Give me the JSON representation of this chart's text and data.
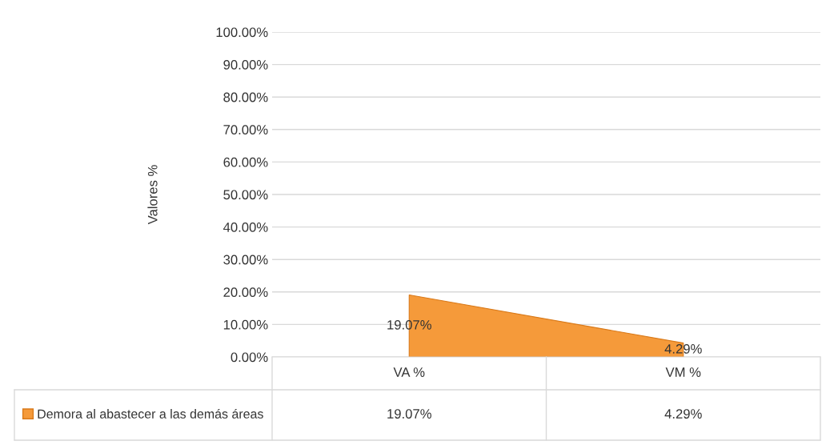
{
  "chart_data": {
    "type": "area",
    "ylabel": "Valores %",
    "categories": [
      "VA %",
      "VM %"
    ],
    "series": [
      {
        "name": "Demora al abastecer a las demás áreas",
        "color": "#f59a3a",
        "values": [
          19.07,
          4.29
        ],
        "value_labels": [
          "19.07%",
          "4.29%"
        ]
      }
    ],
    "ylim": [
      0,
      100
    ],
    "yticks": [
      {
        "value": 0,
        "label": "0.00%"
      },
      {
        "value": 10,
        "label": "10.00%"
      },
      {
        "value": 20,
        "label": "20.00%"
      },
      {
        "value": 30,
        "label": "30.00%"
      },
      {
        "value": 40,
        "label": "40.00%"
      },
      {
        "value": 50,
        "label": "50.00%"
      },
      {
        "value": 60,
        "label": "60.00%"
      },
      {
        "value": 70,
        "label": "70.00%"
      },
      {
        "value": 80,
        "label": "80.00%"
      },
      {
        "value": 90,
        "label": "90.00%"
      },
      {
        "value": 100,
        "label": "100.00%"
      }
    ],
    "grid": "y",
    "legend": "bottom left"
  }
}
